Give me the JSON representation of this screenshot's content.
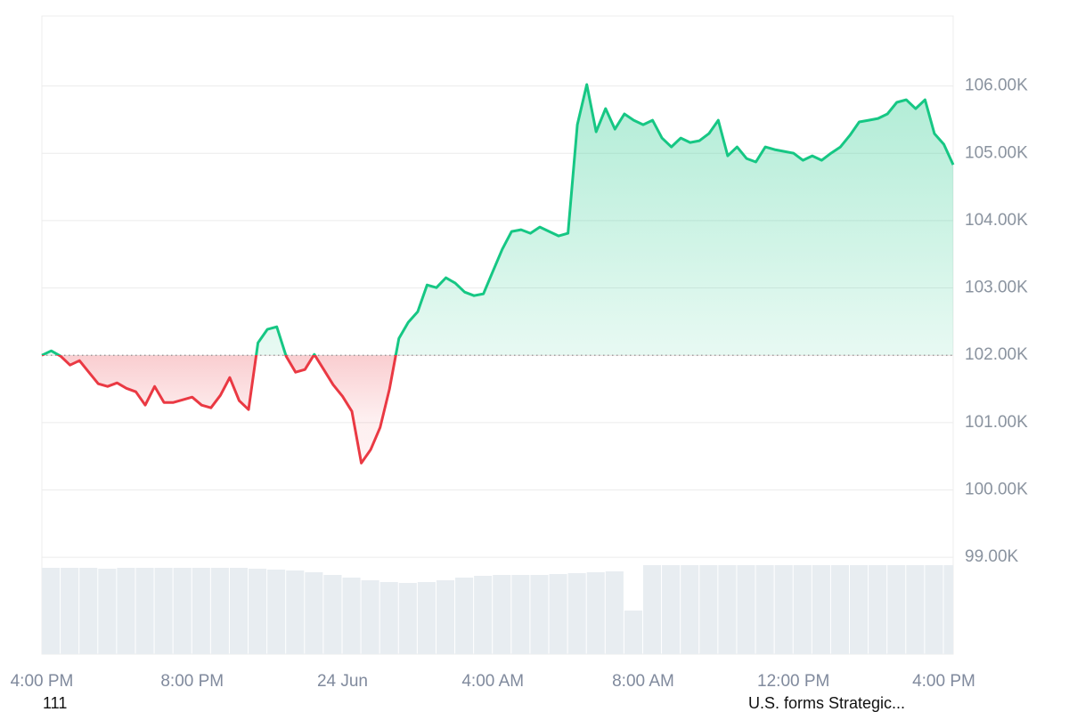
{
  "chart_data": {
    "type": "line",
    "x": [
      0,
      0.25,
      0.5,
      0.75,
      1,
      1.25,
      1.5,
      1.75,
      2,
      2.25,
      2.5,
      2.75,
      3,
      3.25,
      3.5,
      3.75,
      4,
      4.25,
      4.5,
      4.75,
      5,
      5.25,
      5.5,
      5.75,
      6,
      6.25,
      6.5,
      6.75,
      7,
      7.25,
      7.5,
      7.75,
      8,
      8.25,
      8.5,
      8.75,
      9,
      9.25,
      9.5,
      9.75,
      10,
      10.25,
      10.5,
      10.75,
      11,
      11.25,
      11.5,
      11.75,
      12,
      12.25,
      12.5,
      12.75,
      13,
      13.25,
      13.5,
      13.75,
      14,
      14.25,
      14.5,
      14.75,
      15,
      15.25,
      15.5,
      15.75,
      16,
      16.25,
      16.5,
      16.75,
      17,
      17.25,
      17.5,
      17.75,
      18,
      18.25,
      18.5,
      18.75,
      19,
      19.25,
      19.5,
      19.75,
      20,
      20.25,
      20.5,
      20.75,
      21,
      21.25,
      21.5,
      21.75,
      22,
      22.25,
      22.5,
      22.75,
      23,
      23.25,
      23.5,
      23.75,
      24,
      24.25
    ],
    "values": [
      102000,
      102066,
      101987,
      101855,
      101920,
      101749,
      101577,
      101537,
      101590,
      101510,
      101458,
      101259,
      101537,
      101299,
      101299,
      101339,
      101378,
      101259,
      101220,
      101405,
      101669,
      101325,
      101193,
      102185,
      102384,
      102423,
      101987,
      101749,
      101788,
      102013,
      101788,
      101563,
      101391,
      101167,
      100399,
      100598,
      100928,
      101497,
      102251,
      102490,
      102648,
      103045,
      103005,
      103151,
      103072,
      102939,
      102886,
      102913,
      103244,
      103574,
      103839,
      103865,
      103812,
      103905,
      103839,
      103773,
      103812,
      105426,
      106022,
      105320,
      105665,
      105360,
      105585,
      105492,
      105426,
      105492,
      105227,
      105095,
      105227,
      105161,
      105188,
      105293,
      105492,
      104963,
      105095,
      104923,
      104871,
      105095,
      105055,
      105029,
      105003,
      104897,
      104963,
      104897,
      105003,
      105095,
      105267,
      105466,
      105492,
      105518,
      105585,
      105757,
      105796,
      105664,
      105796,
      105294,
      105135,
      104831
    ],
    "baseline": 102000,
    "up_color": "#16c784",
    "down_color": "#ea3943",
    "xlim": [
      0,
      24.25
    ],
    "xticks": [
      {
        "value": 0,
        "label": "4:00 PM"
      },
      {
        "value": 4,
        "label": "8:00 PM"
      },
      {
        "value": 8,
        "label": "24 Jun"
      },
      {
        "value": 12,
        "label": "4:00 AM"
      },
      {
        "value": 16,
        "label": "8:00 AM"
      },
      {
        "value": 20,
        "label": "12:00 PM"
      },
      {
        "value": 24,
        "label": "4:00 PM"
      }
    ],
    "ylim": [
      97560,
      107040
    ],
    "yticks": [
      {
        "value": 99000,
        "label": "99.00K"
      },
      {
        "value": 100000,
        "label": "100.00K"
      },
      {
        "value": 101000,
        "label": "101.00K"
      },
      {
        "value": 102000,
        "label": "102.00K"
      },
      {
        "value": 103000,
        "label": "103.00K"
      },
      {
        "value": 104000,
        "label": "104.00K"
      },
      {
        "value": 105000,
        "label": "105.00K"
      },
      {
        "value": 106000,
        "label": "106.00K"
      }
    ],
    "grid": true,
    "volume": {
      "color": "#e8edf1",
      "ylim": [
        0,
        100
      ],
      "x": [
        0,
        0.5,
        1,
        1.5,
        2,
        2.5,
        3,
        3.5,
        4,
        4.5,
        5,
        5.5,
        6,
        6.5,
        7,
        7.5,
        8,
        8.5,
        9,
        9.5,
        10,
        10.5,
        11,
        11.5,
        12,
        12.5,
        13,
        13.5,
        14,
        14.5,
        15,
        15.5,
        16,
        16.5,
        17,
        17.5,
        18,
        18.5,
        19,
        19.5,
        20,
        20.5,
        21,
        21.5,
        22,
        22.5,
        23,
        23.5,
        24
      ],
      "values": [
        97,
        97,
        97,
        96,
        97,
        97,
        97,
        97,
        97,
        97,
        97,
        96,
        95,
        94,
        92,
        89,
        86,
        83,
        81,
        80,
        81,
        83,
        86,
        88,
        89,
        89,
        89,
        90,
        91,
        92,
        93,
        49,
        100,
        100,
        100,
        100,
        100,
        100,
        100,
        100,
        100,
        100,
        100,
        100,
        100,
        100,
        100,
        100,
        100
      ]
    },
    "annotations": [
      "111",
      "U.S. forms Strategic..."
    ]
  }
}
